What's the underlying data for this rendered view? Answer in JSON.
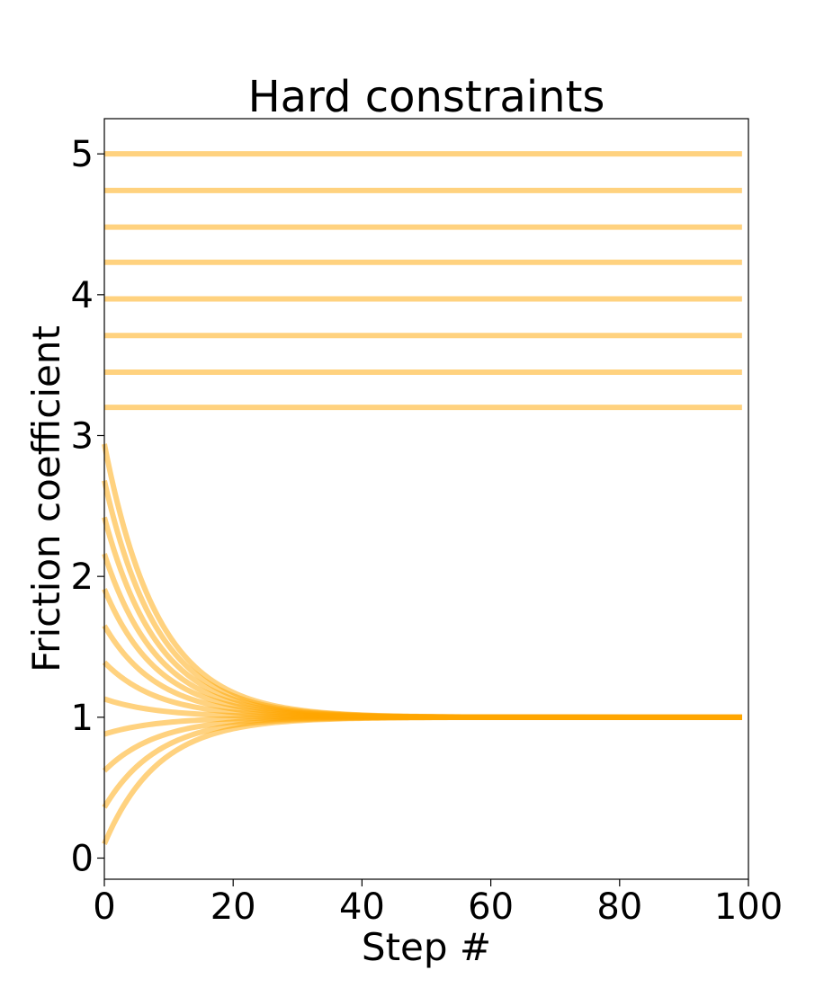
{
  "chart_data": {
    "type": "line",
    "title": "Hard constraints",
    "xlabel": "Step #",
    "ylabel": "Friction coefficient",
    "xlim": [
      0,
      100
    ],
    "ylim": [
      -0.15,
      5.25
    ],
    "xticks": [
      0,
      20,
      40,
      60,
      80,
      100
    ],
    "yticks": [
      0,
      1,
      2,
      3,
      4,
      5
    ],
    "grid": false,
    "legend": "none",
    "line_color": "#FFA500",
    "line_alpha": 0.5,
    "x": [
      0,
      100
    ],
    "converging_series": {
      "target": 1.0,
      "decay_per_step": 0.12,
      "x_end": 99,
      "initial_values": [
        0.1,
        0.36,
        0.62,
        0.88,
        1.13,
        1.39,
        1.65,
        1.91,
        2.16,
        2.42,
        2.68,
        2.94
      ]
    },
    "constant_series": {
      "x_end": 99,
      "values": [
        3.2,
        3.45,
        3.71,
        3.97,
        4.23,
        4.48,
        4.74,
        5.0
      ]
    }
  }
}
